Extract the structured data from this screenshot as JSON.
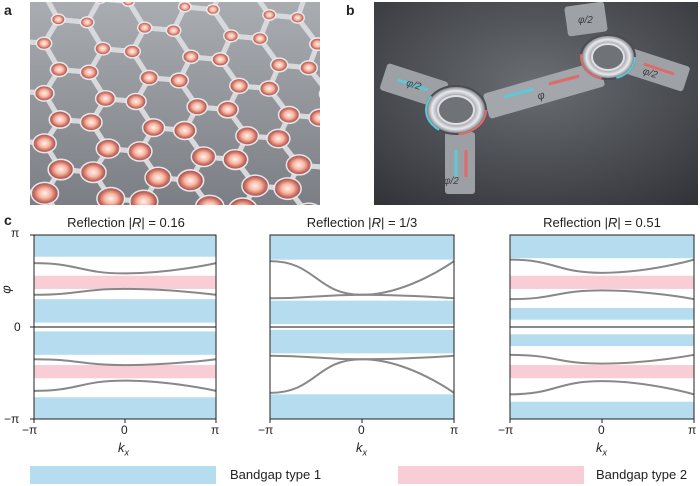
{
  "panels": {
    "a": "a",
    "b": "b",
    "c": "c"
  },
  "photo_b_labels": {
    "phi": "φ",
    "phi_half_1": "φ/2",
    "phi_half_2": "φ/2",
    "phi_half_3": "φ/2",
    "phi_half_4": "φ/2",
    "phi_half_5": "φ/2"
  },
  "plots": [
    {
      "title_prefix": "Reflection |",
      "title_var": "R",
      "title_suffix": "| = 0.16"
    },
    {
      "title_prefix": "Reflection |",
      "title_var": "R",
      "title_suffix": "| = 1/3"
    },
    {
      "title_prefix": "Reflection |",
      "title_var": "R",
      "title_suffix": "| = 0.51"
    }
  ],
  "axes": {
    "y_ticks": [
      "π",
      "0",
      "−π"
    ],
    "y_label": "φ",
    "x_ticks": [
      "−π",
      "0",
      "π"
    ],
    "x_label": "k",
    "x_label_sub": "x"
  },
  "legend": {
    "type1": "Bandgap type 1",
    "type2": "Bandgap type 2"
  },
  "colors": {
    "gap1": "#b6dcf0",
    "gap2": "#f8cdd5",
    "band": "#888888"
  },
  "chart_data": [
    {
      "type": "line",
      "title": "Reflection |R| = 0.16",
      "xlabel": "kx",
      "ylabel": "φ",
      "xlim": [
        -3.1416,
        3.1416
      ],
      "ylim": [
        -3.1416,
        3.1416
      ],
      "band_gap_type1": [
        [
          2.4,
          3.1416
        ],
        [
          0.15,
          0.95
        ],
        [
          -0.95,
          -0.15
        ],
        [
          -3.1416,
          -2.4
        ]
      ],
      "band_gap_type2": [
        [
          1.3,
          1.75
        ],
        [
          -1.75,
          -1.3
        ]
      ],
      "series": [
        {
          "x": [
            -3.1416,
            0,
            3.1416
          ],
          "y": [
            2.18,
            1.83,
            2.18
          ]
        },
        {
          "x": [
            -3.1416,
            0,
            3.1416
          ],
          "y": [
            1.1,
            1.3,
            1.1
          ]
        },
        {
          "x": [
            -3.1416,
            0,
            3.1416
          ],
          "y": [
            0,
            0,
            0
          ]
        },
        {
          "x": [
            -3.1416,
            0,
            3.1416
          ],
          "y": [
            -1.1,
            -1.3,
            -1.1
          ]
        },
        {
          "x": [
            -3.1416,
            0,
            3.1416
          ],
          "y": [
            -2.18,
            -1.83,
            -2.18
          ]
        }
      ]
    },
    {
      "type": "line",
      "title": "Reflection |R| = 1/3",
      "xlabel": "kx",
      "ylabel": "φ",
      "xlim": [
        -3.1416,
        3.1416
      ],
      "ylim": [
        -3.1416,
        3.1416
      ],
      "band_gap_type1": [
        [
          2.3,
          3.1416
        ],
        [
          0.1,
          0.9
        ],
        [
          -0.9,
          -0.1
        ],
        [
          -3.1416,
          -2.3
        ]
      ],
      "series": [
        {
          "x": [
            -3.1416,
            0,
            3.1416
          ],
          "y": [
            2.25,
            1.1,
            0.98
          ]
        },
        {
          "x": [
            -3.1416,
            0,
            3.1416
          ],
          "y": [
            0.98,
            1.1,
            2.25
          ]
        },
        {
          "x": [
            -3.1416,
            0,
            3.1416
          ],
          "y": [
            0,
            0,
            0
          ]
        },
        {
          "x": [
            -3.1416,
            0,
            3.1416
          ],
          "y": [
            -2.25,
            -1.1,
            -0.98
          ]
        },
        {
          "x": [
            -3.1416,
            0,
            3.1416
          ],
          "y": [
            -0.98,
            -1.1,
            -2.25
          ]
        }
      ]
    },
    {
      "type": "line",
      "title": "Reflection |R| = 0.51",
      "xlabel": "kx",
      "ylabel": "φ",
      "xlim": [
        -3.1416,
        3.1416
      ],
      "ylim": [
        -3.1416,
        3.1416
      ],
      "band_gap_type1": [
        [
          2.35,
          3.1416
        ],
        [
          0.25,
          0.65
        ],
        [
          -0.65,
          -0.25
        ],
        [
          -3.1416,
          -2.55
        ]
      ],
      "band_gap_type2": [
        [
          1.3,
          1.75
        ],
        [
          -1.75,
          -1.3
        ]
      ],
      "series": [
        {
          "x": [
            -3.1416,
            0,
            3.1416
          ],
          "y": [
            2.3,
            1.85,
            2.3
          ]
        },
        {
          "x": [
            -3.1416,
            0,
            3.1416
          ],
          "y": [
            0.95,
            1.25,
            0.95
          ]
        },
        {
          "x": [
            -3.1416,
            0,
            3.1416
          ],
          "y": [
            0,
            0,
            0
          ]
        },
        {
          "x": [
            -3.1416,
            0,
            3.1416
          ],
          "y": [
            -0.95,
            -1.25,
            -0.95
          ]
        },
        {
          "x": [
            -3.1416,
            0,
            3.1416
          ],
          "y": [
            -2.3,
            -1.85,
            -2.3
          ]
        }
      ]
    }
  ]
}
